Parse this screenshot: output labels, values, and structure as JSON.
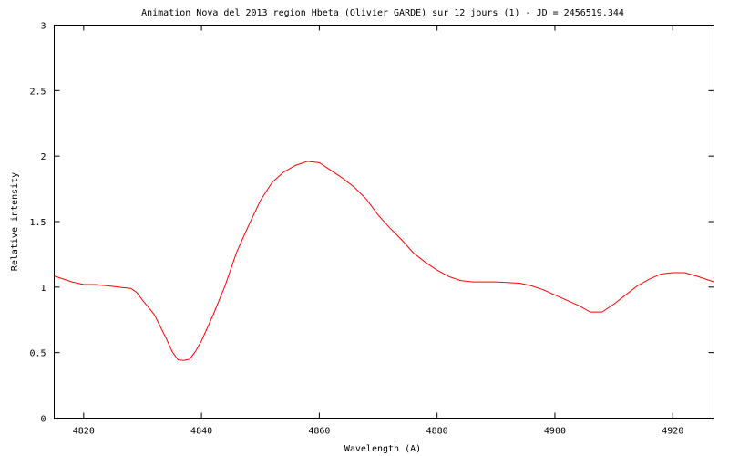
{
  "chart_data": {
    "type": "line",
    "title": "Animation Nova del 2013 region Hbeta (Olivier GARDE) sur 12 jours (1) - JD = 2456519.344",
    "x_label": "Wavelength (A)",
    "y_label": "Relative intensity",
    "xlim": [
      4815,
      4927
    ],
    "ylim": [
      0,
      3
    ],
    "xticks": [
      4820,
      4840,
      4860,
      4880,
      4900,
      4920
    ],
    "yticks": [
      0,
      0.5,
      1,
      1.5,
      2,
      2.5,
      3
    ],
    "grid": false,
    "series": [
      {
        "color": "#ff0000",
        "x": [
          4815,
          4818,
          4820,
          4822,
          4824,
          4826,
          4828,
          4829,
          4830,
          4832,
          4834,
          4835,
          4836,
          4837,
          4838,
          4839,
          4840,
          4842,
          4844,
          4846,
          4848,
          4850,
          4852,
          4854,
          4856,
          4858,
          4860,
          4862,
          4864,
          4866,
          4868,
          4870,
          4872,
          4874,
          4876,
          4878,
          4880,
          4882,
          4884,
          4886,
          4890,
          4894,
          4896,
          4898,
          4900,
          4902,
          4904,
          4906,
          4908,
          4910,
          4912,
          4914,
          4916,
          4918,
          4920,
          4922,
          4924,
          4927
        ],
        "values": [
          1.085,
          1.04,
          1.02,
          1.02,
          1.01,
          1.0,
          0.99,
          0.96,
          0.9,
          0.79,
          0.61,
          0.51,
          0.445,
          0.44,
          0.45,
          0.51,
          0.59,
          0.79,
          1.01,
          1.27,
          1.47,
          1.66,
          1.8,
          1.88,
          1.93,
          1.96,
          1.95,
          1.89,
          1.83,
          1.76,
          1.67,
          1.55,
          1.45,
          1.36,
          1.26,
          1.19,
          1.13,
          1.08,
          1.05,
          1.04,
          1.04,
          1.03,
          1.01,
          0.98,
          0.94,
          0.9,
          0.86,
          0.81,
          0.81,
          0.87,
          0.94,
          1.01,
          1.06,
          1.1,
          1.11,
          1.11,
          1.085,
          1.04
        ]
      }
    ]
  }
}
